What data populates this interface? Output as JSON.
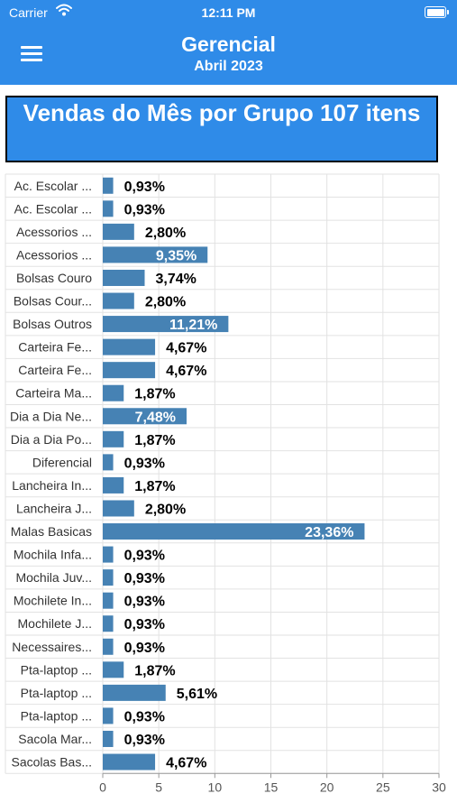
{
  "status_bar": {
    "carrier": "Carrier",
    "time": "12:11 PM"
  },
  "header": {
    "title": "Gerencial",
    "subtitle": "Abril 2023",
    "menu_icon": "hamburger-menu-icon"
  },
  "colors": {
    "header": "#2f8be8",
    "bar": "#4682b4"
  },
  "chart_data": {
    "type": "bar",
    "orientation": "horizontal",
    "title": "Vendas do Mês por Grupo 107 itens",
    "categories": [
      "Ac. Escolar ...",
      "Ac. Escolar ...",
      "Acessorios ...",
      "Acessorios ...",
      "Bolsas Couro",
      "Bolsas Cour...",
      "Bolsas Outros",
      "Carteira Fe...",
      "Carteira Fe...",
      "Carteira Ma...",
      "Dia a Dia Ne...",
      "Dia a Dia Po...",
      "Diferencial",
      "Lancheira In...",
      "Lancheira J...",
      "Malas Basicas",
      "Mochila Infa...",
      "Mochila Juv...",
      "Mochilete In...",
      "Mochilete J...",
      "Necessaires...",
      "Pta-laptop ...",
      "Pta-laptop ...",
      "Pta-laptop ...",
      "Sacola Mar...",
      "Sacolas Bas..."
    ],
    "values": [
      0.93,
      0.93,
      2.8,
      9.35,
      3.74,
      2.8,
      11.21,
      4.67,
      4.67,
      1.87,
      7.48,
      1.87,
      0.93,
      1.87,
      2.8,
      23.36,
      0.93,
      0.93,
      0.93,
      0.93,
      0.93,
      1.87,
      5.61,
      0.93,
      0.93,
      4.67
    ],
    "value_labels": [
      "0,93%",
      "0,93%",
      "2,80%",
      "9,35%",
      "3,74%",
      "2,80%",
      "11,21%",
      "4,67%",
      "4,67%",
      "1,87%",
      "7,48%",
      "1,87%",
      "0,93%",
      "1,87%",
      "2,80%",
      "23,36%",
      "0,93%",
      "0,93%",
      "0,93%",
      "0,93%",
      "0,93%",
      "1,87%",
      "5,61%",
      "0,93%",
      "0,93%",
      "4,67%"
    ],
    "xlim": [
      0,
      30
    ],
    "xticks": [
      0,
      5,
      10,
      15,
      20,
      25,
      30
    ],
    "grid": true
  }
}
